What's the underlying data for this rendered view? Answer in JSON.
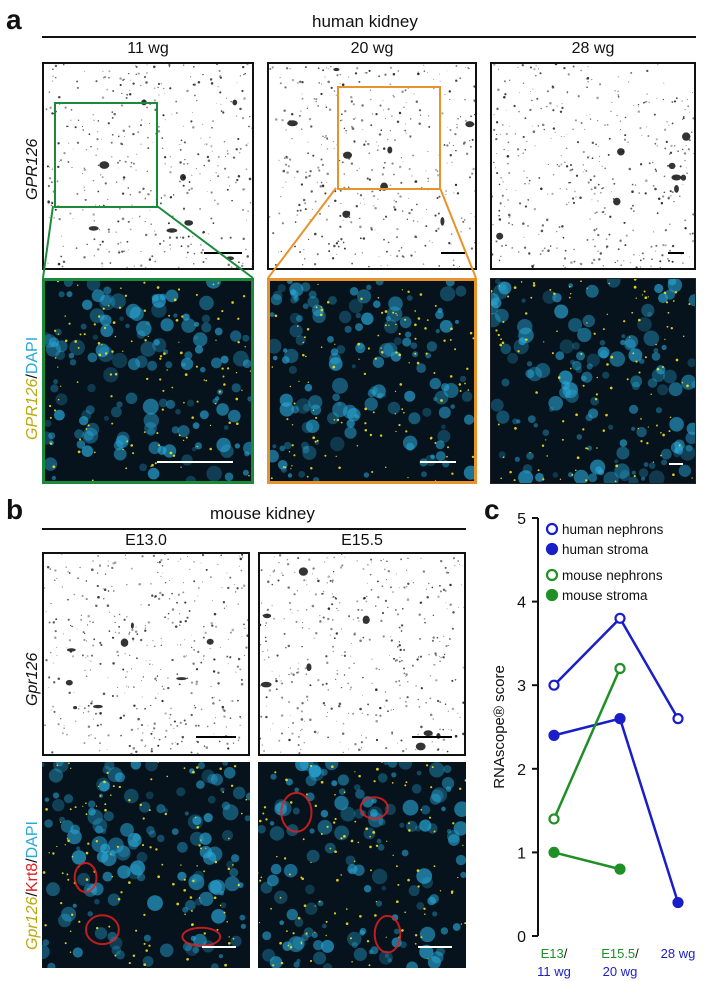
{
  "panels": {
    "a": "a",
    "b": "b",
    "c": "c"
  },
  "panel_a": {
    "header": "human kidney",
    "columns": [
      "11 wg",
      "20 wg",
      "28 wg"
    ],
    "row1_label": "GPR126",
    "row2_label": {
      "gene": "GPR126",
      "sep": "/",
      "stain": "DAPI"
    }
  },
  "panel_b": {
    "header": "mouse kidney",
    "columns": [
      "E13.0",
      "E15.5"
    ],
    "row1_label": "Gpr126",
    "row2_label": {
      "gene": "Gpr126",
      "sep1": "/",
      "marker": "Krt8",
      "sep2": "/",
      "stain": "DAPI"
    }
  },
  "colors": {
    "human": "#1a1ec8",
    "mouse": "#1f8f26",
    "roi_11wg": "#1b8a3a",
    "roi_20wg": "#e8922b",
    "dapi": "#2aa8d8",
    "rna_dots": "#f2e21a",
    "krt8": "#e02020"
  },
  "chart_data": {
    "type": "line",
    "ylabel": "RNAscope® score",
    "ylim": [
      0,
      5
    ],
    "yticks": [
      "0",
      "1",
      "2",
      "3",
      "4",
      "5"
    ],
    "x_categories": [
      {
        "mouse": "E13",
        "sep": "/",
        "human": "11 wg"
      },
      {
        "mouse": "E15.5",
        "sep": "/",
        "human": "20 wg"
      },
      {
        "mouse": "",
        "sep": "",
        "human": "28 wg"
      }
    ],
    "legend": [
      "human nephrons",
      "human stroma",
      "mouse nephrons",
      "mouse stroma"
    ],
    "series": [
      {
        "name": "human nephrons",
        "organism": "human",
        "marker": "open",
        "x": [
          0,
          1,
          2
        ],
        "values": [
          3.0,
          3.8,
          2.6
        ]
      },
      {
        "name": "human stroma",
        "organism": "human",
        "marker": "filled",
        "x": [
          0,
          1,
          2
        ],
        "values": [
          2.4,
          2.6,
          0.4
        ]
      },
      {
        "name": "mouse nephrons",
        "organism": "mouse",
        "marker": "open",
        "x": [
          0,
          1
        ],
        "values": [
          1.4,
          3.2
        ]
      },
      {
        "name": "mouse stroma",
        "organism": "mouse",
        "marker": "filled",
        "x": [
          0,
          1
        ],
        "values": [
          1.0,
          0.8
        ]
      }
    ]
  }
}
